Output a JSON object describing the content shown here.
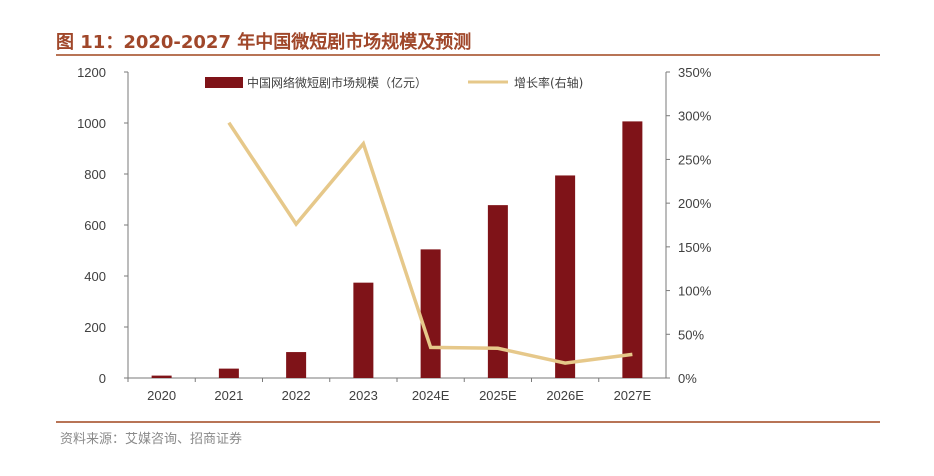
{
  "header": {
    "title": "图 11：2020-2027 年中国微短剧市场规模及预测"
  },
  "footer": {
    "source": "资料来源：艾媒咨询、招商证券"
  },
  "colors": {
    "bar": "#7f1318",
    "line": "#e6c88a",
    "accent": "#a0472a"
  },
  "chart_data": {
    "type": "bar",
    "categories": [
      "2020",
      "2021",
      "2022",
      "2023",
      "2024E",
      "2025E",
      "2026E",
      "2027E"
    ],
    "series": [
      {
        "name": "中国网络微短剧市场规模（亿元）",
        "type": "bar",
        "axis": "left",
        "values": [
          9.4,
          36.8,
          101.7,
          373.9,
          504.4,
          677.9,
          794.3,
          1006.3
        ]
      },
      {
        "name": "增长率(右轴)",
        "type": "line",
        "axis": "right",
        "values": [
          null,
          292,
          176,
          268,
          35,
          34,
          17,
          27
        ]
      }
    ],
    "left_axis": {
      "ylim": [
        0,
        1200
      ],
      "ticks": [
        "0",
        "200",
        "400",
        "600",
        "800",
        "1000",
        "1200"
      ]
    },
    "right_axis": {
      "ylim": [
        0,
        350
      ],
      "ticks": [
        "0%",
        "50%",
        "100%",
        "150%",
        "200%",
        "250%",
        "300%",
        "350%"
      ]
    },
    "legend_position": "top-center",
    "grid": false
  }
}
